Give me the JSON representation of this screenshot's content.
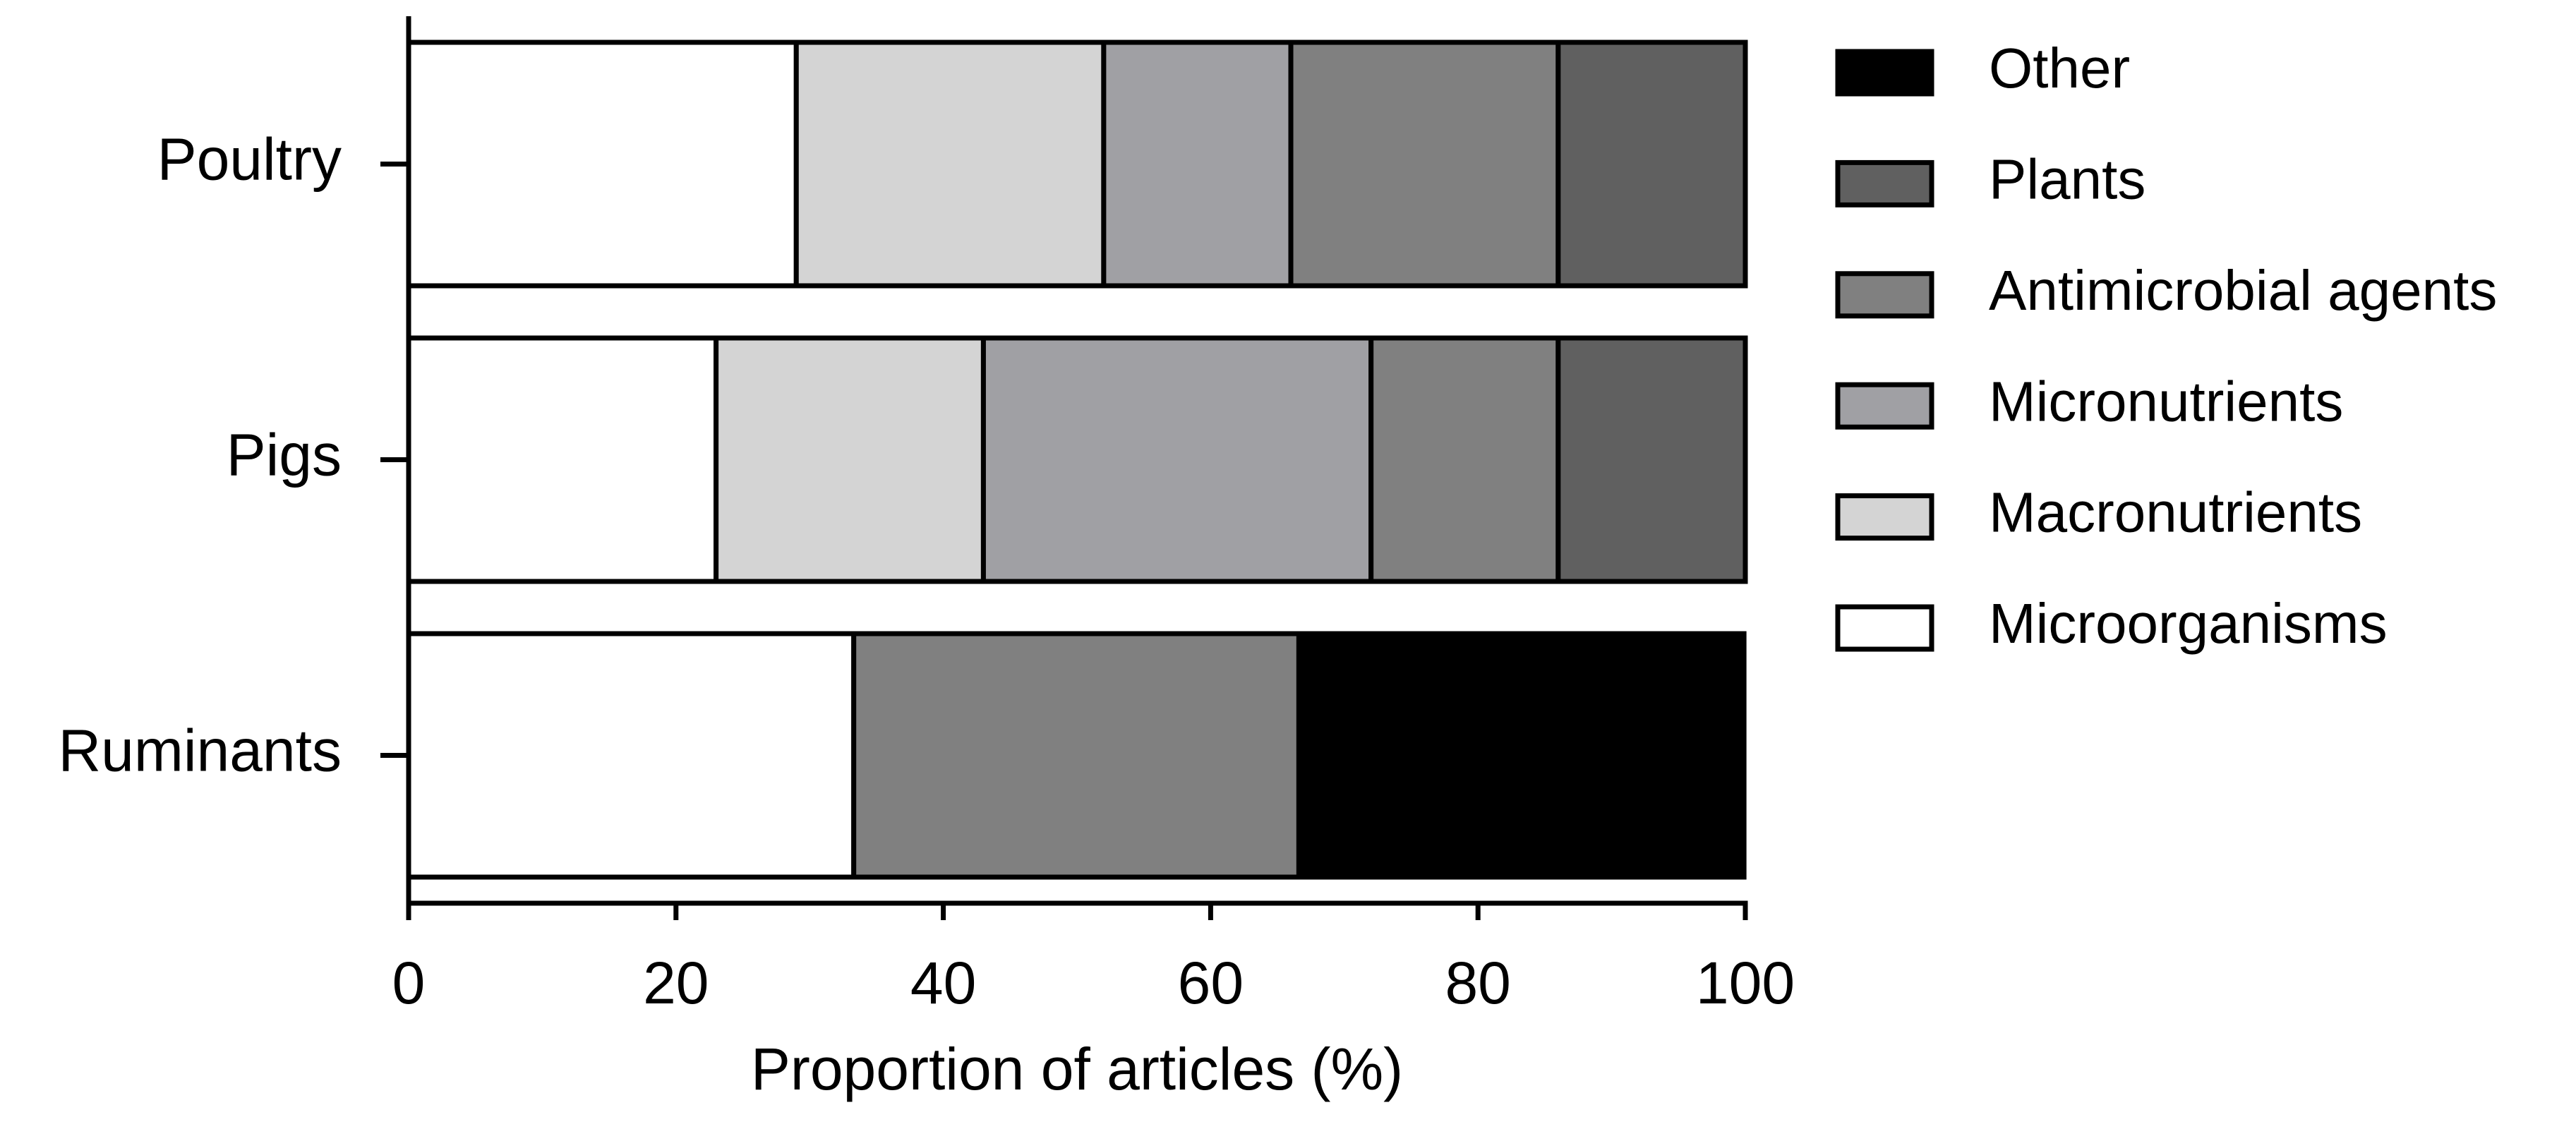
{
  "chart_data": {
    "type": "stacked-barh",
    "xlabel": "Proportion of articles (%)",
    "categories": [
      "Poultry",
      "Pigs",
      "Ruminants"
    ],
    "series": [
      {
        "name": "Microorganisms",
        "color": "#ffffff",
        "values": [
          29,
          23,
          33.3
        ]
      },
      {
        "name": "Macronutrients",
        "color": "#d4d4d4",
        "values": [
          23,
          20,
          0
        ]
      },
      {
        "name": "Micronutrients",
        "color": "#a0a0a4",
        "values": [
          14,
          29,
          0
        ]
      },
      {
        "name": "Antimicrobial agents",
        "color": "#808080",
        "values": [
          20,
          14,
          33.3
        ]
      },
      {
        "name": "Plants",
        "color": "#606060",
        "values": [
          14,
          14,
          0
        ]
      },
      {
        "name": "Other",
        "color": "#000000",
        "values": [
          0,
          0,
          33.3
        ]
      }
    ],
    "xlim": [
      0,
      100
    ],
    "xticks": [
      0,
      20,
      40,
      60,
      80,
      100
    ],
    "legend": "right"
  }
}
